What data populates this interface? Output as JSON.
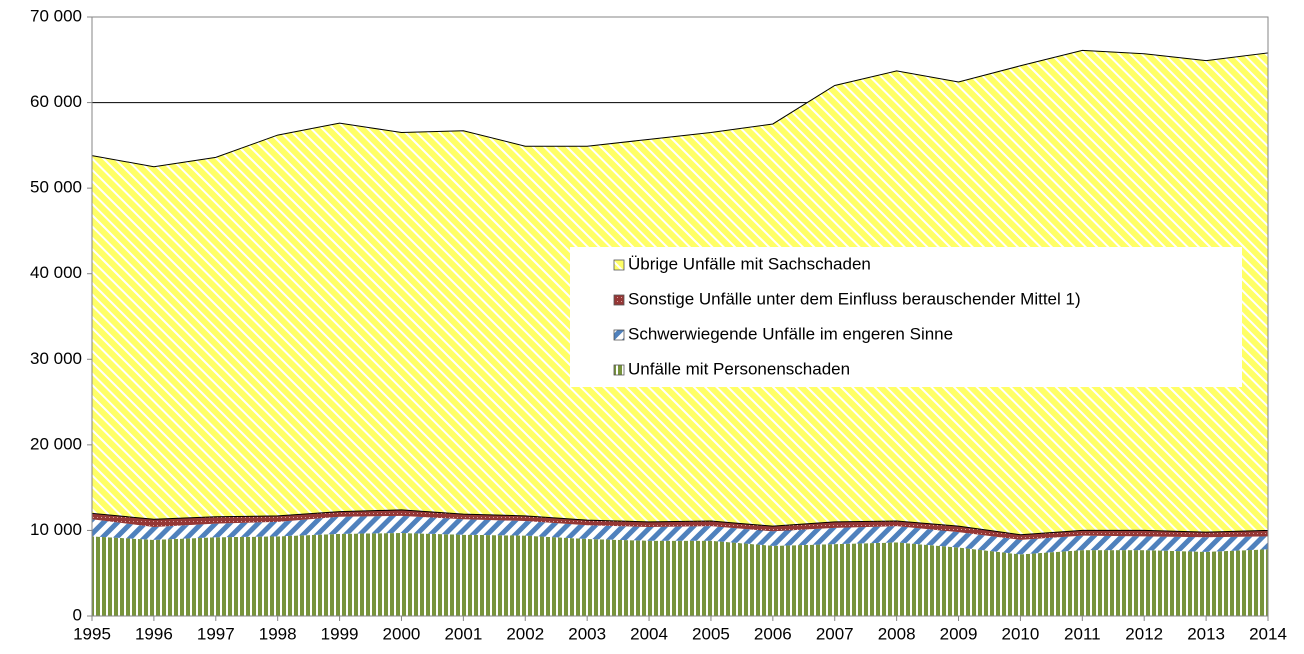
{
  "chart_data": {
    "type": "stacked-area",
    "categories": [
      "1995",
      "1996",
      "1997",
      "1998",
      "1999",
      "2000",
      "2001",
      "2002",
      "2003",
      "2004",
      "2005",
      "2006",
      "2007",
      "2008",
      "2009",
      "2010",
      "2011",
      "2012",
      "2013",
      "2014"
    ],
    "series": [
      {
        "name": "Unfälle mit Personenschaden",
        "color": "#77933c",
        "values": [
          9300,
          8900,
          9200,
          9300,
          9600,
          9700,
          9500,
          9400,
          9000,
          8800,
          8800,
          8200,
          8400,
          8600,
          8000,
          7200,
          7700,
          7700,
          7500,
          7800
        ]
      },
      {
        "name": "Schwerwiegende Unfälle im engeren Sinne",
        "color": "#4f81bd",
        "values": [
          2000,
          1500,
          1600,
          1700,
          2000,
          2000,
          1800,
          1700,
          1600,
          1600,
          1700,
          1700,
          1900,
          1900,
          1800,
          1700,
          1700,
          1600,
          1700,
          1500
        ]
      },
      {
        "name": "Sonstige Unfälle unter dem Einfluss berauschender Mittel 1)",
        "color": "#953735",
        "values": [
          700,
          900,
          800,
          700,
          600,
          700,
          600,
          600,
          600,
          600,
          600,
          600,
          700,
          600,
          700,
          600,
          600,
          700,
          600,
          700
        ]
      },
      {
        "name": "Übrige Unfälle mit Sachschaden",
        "color": "#ffff66",
        "values": [
          41800,
          41200,
          42000,
          44500,
          45400,
          44100,
          44800,
          43200,
          43700,
          44700,
          45400,
          47000,
          51000,
          52600,
          51900,
          54800,
          56100,
          55700,
          55100,
          55800
        ]
      }
    ],
    "ylim": [
      0,
      70000
    ],
    "yticks": [
      0,
      {
        "value": 10000,
        "label": "10 000"
      },
      {
        "value": 20000,
        "label": "20 000"
      },
      {
        "value": 30000,
        "label": "30 000"
      },
      {
        "value": 40000,
        "label": "40 000"
      },
      {
        "value": 50000,
        "label": "50 000"
      },
      {
        "value": 60000,
        "label": "60 000"
      },
      {
        "value": 70000,
        "label": "70 000"
      }
    ],
    "grid": true,
    "legend": "right"
  }
}
